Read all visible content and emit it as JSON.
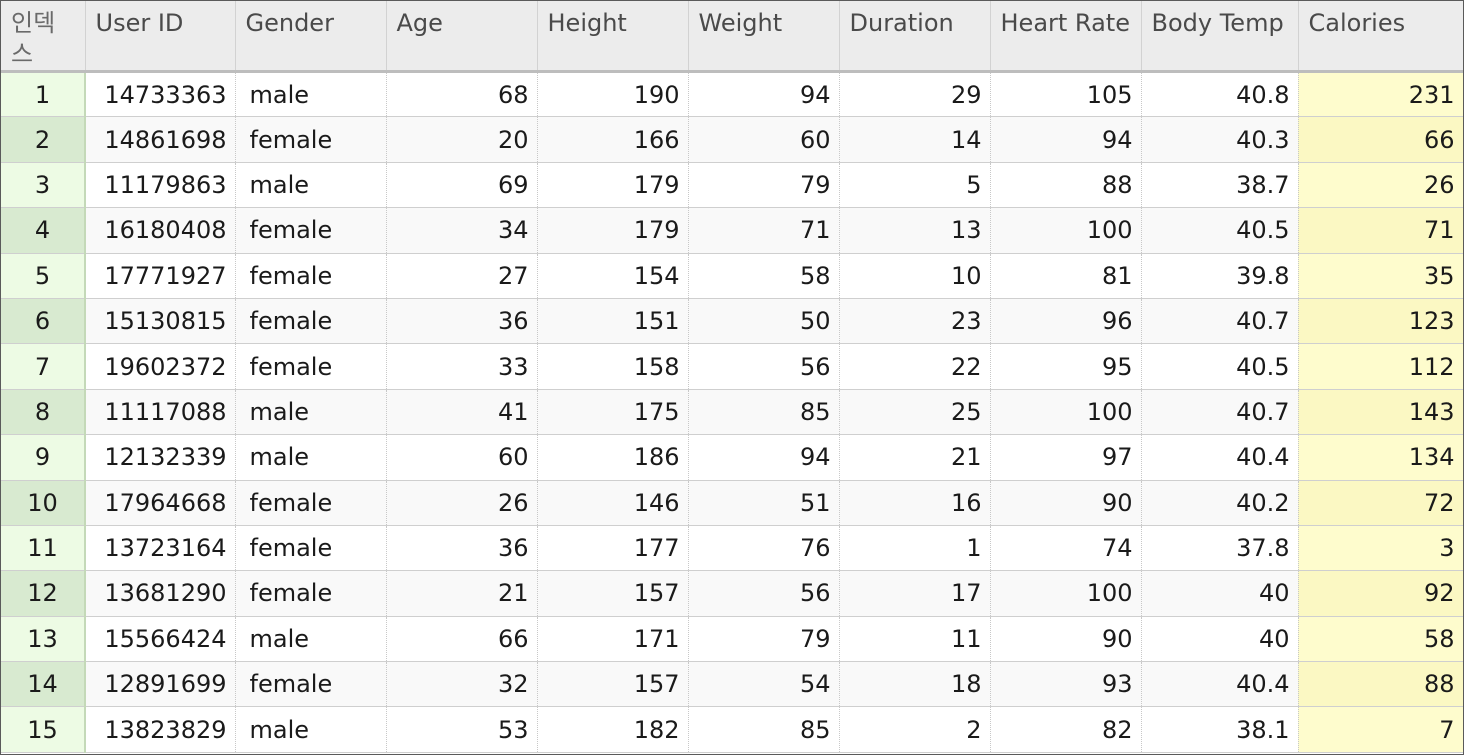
{
  "table": {
    "headers": {
      "index": "인덱스",
      "user_id": "User ID",
      "gender": "Gender",
      "age": "Age",
      "height": "Height",
      "weight": "Weight",
      "duration": "Duration",
      "heart_rate": "Heart Rate",
      "body_temp": "Body Temp",
      "calories": "Calories"
    },
    "rows": [
      {
        "index": "1",
        "user_id": "14733363",
        "gender": "male",
        "age": "68",
        "height": "190",
        "weight": "94",
        "duration": "29",
        "heart_rate": "105",
        "body_temp": "40.8",
        "calories": "231"
      },
      {
        "index": "2",
        "user_id": "14861698",
        "gender": "female",
        "age": "20",
        "height": "166",
        "weight": "60",
        "duration": "14",
        "heart_rate": "94",
        "body_temp": "40.3",
        "calories": "66"
      },
      {
        "index": "3",
        "user_id": "11179863",
        "gender": "male",
        "age": "69",
        "height": "179",
        "weight": "79",
        "duration": "5",
        "heart_rate": "88",
        "body_temp": "38.7",
        "calories": "26"
      },
      {
        "index": "4",
        "user_id": "16180408",
        "gender": "female",
        "age": "34",
        "height": "179",
        "weight": "71",
        "duration": "13",
        "heart_rate": "100",
        "body_temp": "40.5",
        "calories": "71"
      },
      {
        "index": "5",
        "user_id": "17771927",
        "gender": "female",
        "age": "27",
        "height": "154",
        "weight": "58",
        "duration": "10",
        "heart_rate": "81",
        "body_temp": "39.8",
        "calories": "35"
      },
      {
        "index": "6",
        "user_id": "15130815",
        "gender": "female",
        "age": "36",
        "height": "151",
        "weight": "50",
        "duration": "23",
        "heart_rate": "96",
        "body_temp": "40.7",
        "calories": "123"
      },
      {
        "index": "7",
        "user_id": "19602372",
        "gender": "female",
        "age": "33",
        "height": "158",
        "weight": "56",
        "duration": "22",
        "heart_rate": "95",
        "body_temp": "40.5",
        "calories": "112"
      },
      {
        "index": "8",
        "user_id": "11117088",
        "gender": "male",
        "age": "41",
        "height": "175",
        "weight": "85",
        "duration": "25",
        "heart_rate": "100",
        "body_temp": "40.7",
        "calories": "143"
      },
      {
        "index": "9",
        "user_id": "12132339",
        "gender": "male",
        "age": "60",
        "height": "186",
        "weight": "94",
        "duration": "21",
        "heart_rate": "97",
        "body_temp": "40.4",
        "calories": "134"
      },
      {
        "index": "10",
        "user_id": "17964668",
        "gender": "female",
        "age": "26",
        "height": "146",
        "weight": "51",
        "duration": "16",
        "heart_rate": "90",
        "body_temp": "40.2",
        "calories": "72"
      },
      {
        "index": "11",
        "user_id": "13723164",
        "gender": "female",
        "age": "36",
        "height": "177",
        "weight": "76",
        "duration": "1",
        "heart_rate": "74",
        "body_temp": "37.8",
        "calories": "3"
      },
      {
        "index": "12",
        "user_id": "13681290",
        "gender": "female",
        "age": "21",
        "height": "157",
        "weight": "56",
        "duration": "17",
        "heart_rate": "100",
        "body_temp": "40",
        "calories": "92"
      },
      {
        "index": "13",
        "user_id": "15566424",
        "gender": "male",
        "age": "66",
        "height": "171",
        "weight": "79",
        "duration": "11",
        "heart_rate": "90",
        "body_temp": "40",
        "calories": "58"
      },
      {
        "index": "14",
        "user_id": "12891699",
        "gender": "female",
        "age": "32",
        "height": "157",
        "weight": "54",
        "duration": "18",
        "heart_rate": "93",
        "body_temp": "40.4",
        "calories": "88"
      },
      {
        "index": "15",
        "user_id": "13823829",
        "gender": "male",
        "age": "53",
        "height": "182",
        "weight": "85",
        "duration": "2",
        "heart_rate": "82",
        "body_temp": "38.1",
        "calories": "7"
      }
    ]
  }
}
